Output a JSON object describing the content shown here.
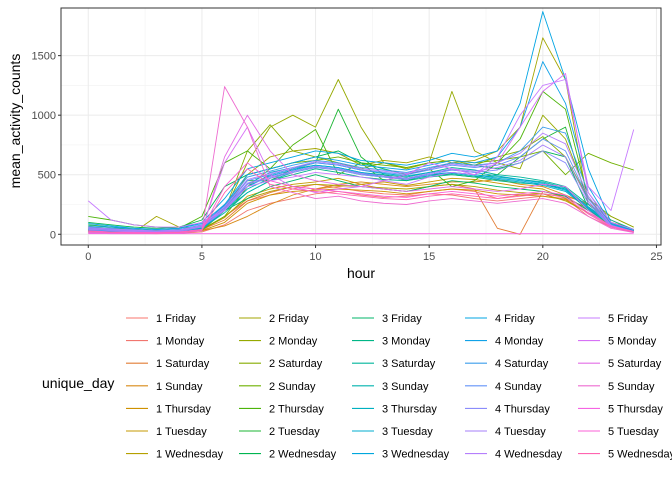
{
  "chart_data": {
    "type": "line",
    "title": "",
    "xlabel": "hour",
    "ylabel": "mean_activity_counts",
    "xlim": [
      -1.2,
      25.2
    ],
    "ylim": [
      -90,
      1900
    ],
    "x_ticks": [
      0,
      5,
      10,
      15,
      20,
      25
    ],
    "y_ticks": [
      0,
      500,
      1000,
      1500
    ],
    "x_tick_labels": [
      "0",
      "5",
      "10",
      "15",
      "20",
      "25"
    ],
    "y_tick_labels": [
      "0",
      "500",
      "1000",
      "1500"
    ],
    "grid": true,
    "legend": {
      "title": "unique_day",
      "position": "bottom",
      "ncol": 5
    },
    "x": [
      0,
      1,
      2,
      3,
      4,
      5,
      6,
      7,
      8,
      9,
      10,
      11,
      12,
      13,
      14,
      15,
      16,
      17,
      18,
      19,
      20,
      21,
      22,
      23,
      24
    ],
    "series": [
      {
        "name": "1 Friday",
        "color": "#F8766D",
        "values": [
          40,
          20,
          15,
          10,
          12,
          30,
          150,
          280,
          330,
          380,
          420,
          390,
          360,
          340,
          330,
          360,
          380,
          360,
          300,
          330,
          340,
          320,
          200,
          100,
          40
        ]
      },
      {
        "name": "1 Monday",
        "color": "#F1766F",
        "values": [
          20,
          10,
          8,
          5,
          8,
          20,
          80,
          200,
          260,
          300,
          340,
          360,
          330,
          310,
          320,
          340,
          330,
          300,
          280,
          300,
          320,
          300,
          150,
          60,
          20
        ]
      },
      {
        "name": "1 Saturday",
        "color": "#E27D35",
        "values": [
          30,
          25,
          20,
          15,
          20,
          40,
          120,
          280,
          350,
          400,
          380,
          400,
          420,
          380,
          360,
          400,
          420,
          380,
          50,
          0,
          360,
          320,
          260,
          120,
          30
        ]
      },
      {
        "name": "1 Sunday",
        "color": "#D98A16",
        "values": [
          60,
          50,
          40,
          30,
          20,
          30,
          70,
          150,
          250,
          330,
          380,
          420,
          440,
          420,
          400,
          420,
          440,
          440,
          460,
          420,
          400,
          330,
          250,
          150,
          60
        ]
      },
      {
        "name": "1 Thursday",
        "color": "#CE9100",
        "values": [
          30,
          20,
          20,
          15,
          20,
          30,
          100,
          260,
          330,
          360,
          370,
          380,
          370,
          360,
          340,
          360,
          380,
          370,
          340,
          330,
          320,
          290,
          180,
          80,
          20
        ]
      },
      {
        "name": "1 Tuesday",
        "color": "#C49A00",
        "values": [
          40,
          30,
          20,
          20,
          25,
          40,
          140,
          320,
          380,
          420,
          440,
          470,
          420,
          440,
          410,
          440,
          470,
          460,
          430,
          400,
          380,
          300,
          220,
          100,
          40
        ]
      },
      {
        "name": "1 Wednesday",
        "color": "#B5A000",
        "values": [
          25,
          20,
          15,
          15,
          20,
          40,
          150,
          300,
          360,
          400,
          420,
          410,
          400,
          390,
          380,
          400,
          420,
          400,
          370,
          350,
          340,
          280,
          180,
          70,
          20
        ]
      },
      {
        "name": "2 Friday",
        "color": "#A3A500",
        "values": [
          30,
          20,
          15,
          150,
          60,
          50,
          200,
          500,
          650,
          700,
          720,
          680,
          580,
          620,
          600,
          650,
          600,
          620,
          700,
          900,
          1650,
          1300,
          250,
          100,
          30
        ]
      },
      {
        "name": "2 Monday",
        "color": "#95A900",
        "values": [
          20,
          15,
          10,
          10,
          15,
          30,
          200,
          600,
          900,
          1000,
          900,
          1300,
          900,
          600,
          550,
          600,
          1200,
          700,
          600,
          550,
          1000,
          800,
          300,
          100,
          20
        ]
      },
      {
        "name": "2 Saturday",
        "color": "#86AC00",
        "values": [
          40,
          30,
          25,
          20,
          20,
          40,
          200,
          700,
          920,
          700,
          650,
          600,
          550,
          600,
          560,
          600,
          620,
          580,
          650,
          700,
          820,
          650,
          300,
          150,
          60
        ]
      },
      {
        "name": "2 Sunday",
        "color": "#6FB000",
        "values": [
          60,
          50,
          40,
          30,
          30,
          40,
          150,
          400,
          550,
          600,
          620,
          650,
          600,
          580,
          560,
          600,
          620,
          600,
          620,
          650,
          700,
          500,
          680,
          600,
          540
        ]
      },
      {
        "name": "2 Thursday",
        "color": "#4DB40A",
        "values": [
          150,
          120,
          80,
          60,
          50,
          150,
          600,
          700,
          550,
          750,
          880,
          500,
          600,
          450,
          500,
          550,
          400,
          450,
          600,
          800,
          1200,
          1050,
          300,
          100,
          30
        ]
      },
      {
        "name": "2 Tuesday",
        "color": "#1BB533",
        "values": [
          80,
          60,
          40,
          30,
          40,
          60,
          250,
          450,
          450,
          550,
          600,
          1050,
          650,
          500,
          450,
          500,
          500,
          480,
          500,
          650,
          800,
          900,
          250,
          100,
          40
        ]
      },
      {
        "name": "2 Wednesday",
        "color": "#00B550",
        "values": [
          100,
          80,
          60,
          50,
          60,
          120,
          400,
          500,
          550,
          600,
          650,
          700,
          600,
          550,
          500,
          550,
          600,
          580,
          550,
          600,
          700,
          650,
          220,
          80,
          30
        ]
      },
      {
        "name": "3 Friday",
        "color": "#00B66A",
        "values": [
          50,
          30,
          20,
          20,
          25,
          50,
          200,
          300,
          400,
          450,
          500,
          450,
          400,
          380,
          360,
          400,
          450,
          430,
          400,
          380,
          360,
          320,
          200,
          100,
          40
        ]
      },
      {
        "name": "3 Monday",
        "color": "#00B686",
        "values": [
          30,
          20,
          20,
          15,
          20,
          40,
          200,
          350,
          450,
          500,
          550,
          520,
          480,
          460,
          450,
          480,
          500,
          480,
          450,
          430,
          420,
          380,
          200,
          80,
          30
        ]
      },
      {
        "name": "3 Saturday",
        "color": "#00B59B",
        "values": [
          40,
          30,
          20,
          20,
          30,
          60,
          250,
          400,
          500,
          550,
          580,
          560,
          520,
          500,
          480,
          520,
          560,
          540,
          500,
          480,
          450,
          400,
          250,
          120,
          40
        ]
      },
      {
        "name": "3 Sunday",
        "color": "#00B3AE",
        "values": [
          50,
          40,
          30,
          25,
          30,
          50,
          180,
          350,
          450,
          520,
          560,
          540,
          500,
          480,
          470,
          500,
          520,
          500,
          480,
          460,
          440,
          390,
          230,
          100,
          40
        ]
      },
      {
        "name": "3 Thursday",
        "color": "#00B0C0",
        "values": [
          30,
          25,
          20,
          15,
          20,
          40,
          200,
          380,
          470,
          530,
          570,
          550,
          510,
          480,
          460,
          490,
          510,
          490,
          460,
          440,
          410,
          360,
          210,
          90,
          30
        ]
      },
      {
        "name": "3 Tuesday",
        "color": "#00ACCF",
        "values": [
          40,
          30,
          25,
          20,
          25,
          50,
          230,
          420,
          520,
          560,
          600,
          580,
          540,
          510,
          490,
          520,
          540,
          520,
          490,
          460,
          430,
          380,
          230,
          100,
          40
        ]
      },
      {
        "name": "3 Wednesday",
        "color": "#00A7DD",
        "values": [
          35,
          25,
          20,
          15,
          20,
          45,
          210,
          400,
          490,
          540,
          580,
          560,
          520,
          490,
          470,
          500,
          520,
          500,
          470,
          450,
          420,
          370,
          220,
          90,
          35
        ]
      },
      {
        "name": "4 Friday",
        "color": "#00A4E3",
        "values": [
          90,
          70,
          50,
          40,
          50,
          100,
          300,
          550,
          600,
          650,
          700,
          680,
          620,
          600,
          580,
          620,
          680,
          650,
          700,
          1100,
          1870,
          1300,
          550,
          100,
          30
        ]
      },
      {
        "name": "4 Monday",
        "color": "#11A2E8",
        "values": [
          70,
          60,
          50,
          40,
          50,
          90,
          250,
          500,
          550,
          600,
          650,
          620,
          580,
          560,
          540,
          580,
          620,
          600,
          650,
          900,
          1450,
          1100,
          400,
          90,
          25
        ]
      },
      {
        "name": "4 Saturday",
        "color": "#3B9DEC",
        "values": [
          60,
          50,
          40,
          30,
          40,
          80,
          240,
          480,
          530,
          580,
          620,
          600,
          560,
          540,
          520,
          560,
          600,
          580,
          600,
          700,
          900,
          850,
          350,
          80,
          20
        ]
      },
      {
        "name": "4 Sunday",
        "color": "#6393F8",
        "values": [
          50,
          40,
          30,
          25,
          30,
          70,
          220,
          450,
          500,
          550,
          600,
          580,
          540,
          520,
          500,
          540,
          580,
          560,
          580,
          650,
          800,
          700,
          300,
          70,
          20
        ]
      },
      {
        "name": "4 Thursday",
        "color": "#8B8CFB",
        "values": [
          40,
          30,
          25,
          20,
          25,
          60,
          200,
          420,
          470,
          520,
          560,
          540,
          500,
          480,
          460,
          500,
          540,
          520,
          540,
          600,
          700,
          600,
          260,
          60,
          15
        ]
      },
      {
        "name": "4 Tuesday",
        "color": "#A57FFA",
        "values": [
          45,
          35,
          30,
          25,
          30,
          65,
          210,
          430,
          480,
          530,
          570,
          550,
          510,
          490,
          470,
          510,
          550,
          530,
          560,
          620,
          750,
          650,
          280,
          65,
          18
        ]
      },
      {
        "name": "4 Wednesday",
        "color": "#B57FFC",
        "values": [
          55,
          45,
          35,
          28,
          35,
          75,
          230,
          460,
          510,
          560,
          610,
          590,
          550,
          530,
          510,
          550,
          590,
          570,
          600,
          680,
          850,
          760,
          320,
          75,
          22
        ]
      },
      {
        "name": "5 Friday",
        "color": "#C77CFF",
        "values": [
          280,
          120,
          80,
          60,
          60,
          100,
          200,
          400,
          450,
          480,
          520,
          500,
          480,
          450,
          420,
          480,
          520,
          500,
          650,
          1000,
          1250,
          1300,
          400,
          200,
          880
        ]
      },
      {
        "name": "5 Monday",
        "color": "#D772F6",
        "values": [
          20,
          20,
          20,
          15,
          20,
          40,
          600,
          900,
          500,
          400,
          350,
          380,
          400,
          450,
          500,
          600,
          550,
          500,
          600,
          900,
          1200,
          1350,
          350,
          100,
          40
        ]
      },
      {
        "name": "5 Saturday",
        "color": "#E36EE6",
        "values": [
          10,
          5,
          5,
          5,
          10,
          30,
          650,
          1000,
          700,
          500,
          450,
          420,
          400,
          380,
          360,
          380,
          400,
          380,
          360,
          380,
          420,
          400,
          200,
          60,
          20
        ]
      },
      {
        "name": "5 Sunday",
        "color": "#EE6CD0",
        "values": [
          15,
          10,
          8,
          8,
          10,
          30,
          1240,
          900,
          400,
          350,
          300,
          320,
          280,
          260,
          250,
          280,
          300,
          280,
          260,
          280,
          300,
          260,
          150,
          50,
          15
        ]
      },
      {
        "name": "5 Thursday",
        "color": "#F564E3",
        "values": [
          5,
          5,
          5,
          5,
          5,
          5,
          5,
          5,
          5,
          5,
          5,
          5,
          5,
          5,
          5,
          5,
          5,
          5,
          5,
          5,
          5,
          5,
          5,
          5,
          5
        ]
      },
      {
        "name": "5 Tuesday",
        "color": "#FB61D7",
        "values": [
          30,
          20,
          15,
          15,
          20,
          40,
          400,
          600,
          450,
          400,
          380,
          360,
          340,
          320,
          310,
          340,
          360,
          340,
          320,
          340,
          360,
          330,
          180,
          70,
          25
        ]
      },
      {
        "name": "5 Wednesday",
        "color": "#FF64B0",
        "values": [
          25,
          15,
          10,
          10,
          15,
          35,
          350,
          550,
          420,
          380,
          360,
          340,
          320,
          300,
          290,
          320,
          340,
          320,
          300,
          320,
          340,
          310,
          170,
          60,
          20
        ]
      }
    ]
  }
}
